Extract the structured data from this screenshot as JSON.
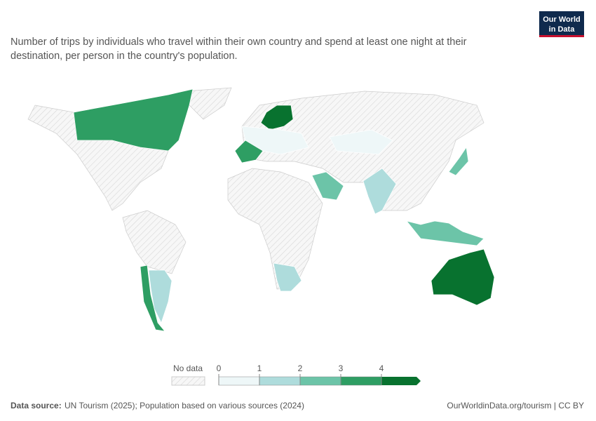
{
  "header": {
    "title": "Number of trips by individuals who travel within their own country and spend at least one night at their destination, per person in the country's population.",
    "logo_lines": [
      "Our World",
      "in Data"
    ]
  },
  "map": {
    "values": [
      3.2,
      4.3,
      3.3,
      2.5,
      1.2,
      2.4,
      4.5,
      3.0,
      1.1,
      2.7,
      0.3,
      1.2,
      0.8
    ]
  },
  "legend": {
    "no_data_label": "No data",
    "ticks": [
      0,
      1,
      2,
      3,
      4
    ],
    "colors": [
      "#eef7f8",
      "#aedcdc",
      "#6cc4a8",
      "#2e9e63",
      "#08722f"
    ]
  },
  "footer": {
    "source_label": "Data source:",
    "source": "UN Tourism (2025); Population based on various sources (2024)",
    "url": "OurWorldinData.org/tourism | CC BY"
  }
}
